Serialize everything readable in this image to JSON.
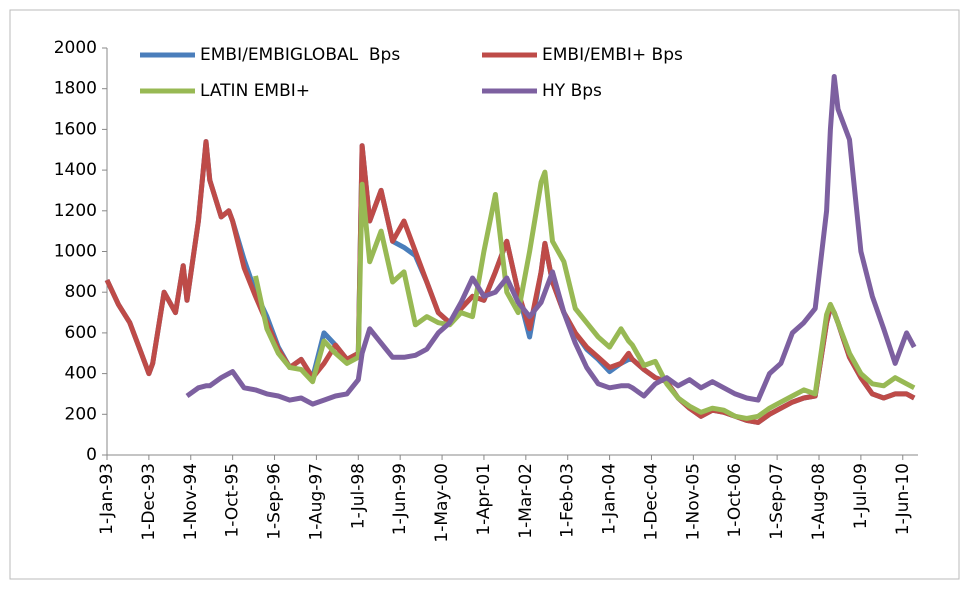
{
  "chart_data": {
    "type": "line",
    "x": [
      "1-Jan-93",
      "1-Apr-93",
      "1-Jul-93",
      "1-Oct-93",
      "1-Dec-93",
      "1-Jan-94",
      "1-Apr-94",
      "1-Jul-94",
      "1-Sep-94",
      "1-Oct-94",
      "1-Jan-95",
      "1-Mar-95",
      "1-Apr-95",
      "1-Jul-95",
      "1-Sep-95",
      "1-Oct-95",
      "1-Jan-96",
      "1-Apr-96",
      "1-Jul-96",
      "1-Oct-96",
      "1-Jan-97",
      "1-Apr-97",
      "1-Jul-97",
      "1-Oct-97",
      "1-Jan-98",
      "1-Apr-98",
      "1-Jul-98",
      "1-Aug-98",
      "1-Oct-98",
      "1-Jan-99",
      "1-Apr-99",
      "1-Jul-99",
      "1-Oct-99",
      "1-Jan-00",
      "1-Apr-00",
      "1-Jul-00",
      "1-Oct-00",
      "1-Jan-01",
      "1-Apr-01",
      "1-Jul-01",
      "1-Oct-01",
      "1-Jan-02",
      "1-Apr-02",
      "1-Jul-02",
      "1-Aug-02",
      "1-Oct-02",
      "1-Jan-03",
      "1-Apr-03",
      "1-Jul-03",
      "1-Oct-03",
      "1-Jan-04",
      "1-Apr-04",
      "1-Jun-04",
      "1-Jul-04",
      "1-Oct-04",
      "1-Jan-05",
      "1-Apr-05",
      "1-Jul-05",
      "1-Oct-05",
      "1-Jan-06",
      "1-Apr-06",
      "1-Jul-06",
      "1-Oct-06",
      "1-Jan-07",
      "1-Apr-07",
      "1-Jul-07",
      "1-Oct-07",
      "1-Jan-08",
      "1-Apr-08",
      "1-Jul-08",
      "1-Oct-08",
      "1-Nov-08",
      "1-Dec-08",
      "1-Jan-09",
      "1-Apr-09",
      "1-Jul-09",
      "1-Oct-09",
      "1-Jan-10",
      "1-Apr-10",
      "1-Jul-10",
      "1-Sep-10"
    ],
    "series": [
      {
        "name": "EMBI/EMBIGLOBAL  Bps",
        "color": "#4a7ebb",
        "values": [
          860,
          740,
          650,
          500,
          400,
          450,
          800,
          700,
          930,
          760,
          1150,
          1540,
          1350,
          1170,
          1200,
          1150,
          960,
          800,
          680,
          530,
          430,
          470,
          380,
          600,
          540,
          470,
          500,
          1520,
          1150,
          1300,
          1050,
          1020,
          980,
          850,
          700,
          650,
          720,
          780,
          760,
          900,
          1050,
          800,
          580,
          900,
          1040,
          850,
          700,
          600,
          520,
          470,
          410,
          450,
          470,
          470,
          420,
          380,
          360,
          280,
          230,
          190,
          220,
          210,
          190,
          170,
          160,
          200,
          230,
          260,
          280,
          290,
          650,
          720,
          700,
          650,
          480,
          380,
          300,
          280,
          300,
          300,
          280
        ]
      },
      {
        "name": "EMBI/EMBI+ Bps",
        "color": "#be4b48",
        "values": [
          860,
          740,
          650,
          500,
          400,
          450,
          800,
          700,
          930,
          760,
          1150,
          1540,
          1350,
          1170,
          1200,
          1150,
          920,
          780,
          650,
          520,
          430,
          470,
          380,
          450,
          540,
          470,
          500,
          1520,
          1150,
          1300,
          1050,
          1150,
          1000,
          850,
          700,
          650,
          720,
          780,
          760,
          900,
          1050,
          800,
          620,
          900,
          1040,
          850,
          700,
          600,
          530,
          480,
          430,
          450,
          500,
          470,
          420,
          380,
          360,
          280,
          230,
          190,
          220,
          210,
          190,
          170,
          160,
          200,
          230,
          260,
          280,
          290,
          650,
          730,
          700,
          650,
          480,
          380,
          300,
          280,
          300,
          300,
          280
        ]
      },
      {
        "name": "LATIN EMBI+",
        "color": "#98b954",
        "values": [
          null,
          null,
          null,
          null,
          null,
          null,
          null,
          null,
          null,
          null,
          null,
          null,
          null,
          null,
          null,
          null,
          null,
          880,
          620,
          500,
          430,
          420,
          360,
          560,
          500,
          450,
          480,
          1330,
          950,
          1100,
          850,
          900,
          640,
          680,
          650,
          640,
          700,
          680,
          1000,
          1280,
          800,
          700,
          1000,
          1340,
          1390,
          1050,
          950,
          720,
          650,
          580,
          530,
          620,
          560,
          540,
          440,
          460,
          350,
          280,
          240,
          210,
          230,
          220,
          190,
          180,
          190,
          230,
          260,
          290,
          320,
          300,
          690,
          740,
          700,
          650,
          500,
          400,
          350,
          340,
          380,
          350,
          330
        ]
      },
      {
        "name": "HY Bps",
        "color": "#7d60a0",
        "values": [
          null,
          null,
          null,
          null,
          null,
          null,
          null,
          null,
          null,
          290,
          330,
          340,
          340,
          380,
          400,
          410,
          330,
          320,
          300,
          290,
          270,
          280,
          250,
          270,
          290,
          300,
          370,
          500,
          620,
          550,
          480,
          480,
          490,
          520,
          600,
          650,
          750,
          870,
          780,
          800,
          870,
          750,
          680,
          750,
          800,
          900,
          700,
          550,
          430,
          350,
          330,
          340,
          340,
          330,
          290,
          350,
          380,
          340,
          370,
          330,
          360,
          330,
          300,
          280,
          270,
          400,
          450,
          600,
          650,
          720,
          1200,
          1600,
          1860,
          1700,
          1550,
          1000,
          780,
          620,
          450,
          600,
          530
        ]
      }
    ],
    "xlim": [
      "1-Jan-93",
      "1-Oct-10"
    ],
    "xticks": [
      "1-Jan-93",
      "1-Dec-93",
      "1-Nov-94",
      "1-Oct-95",
      "1-Sep-96",
      "1-Aug-97",
      "1-Jul-98",
      "1-Jun-99",
      "1-May-00",
      "1-Apr-01",
      "1-Mar-02",
      "1-Feb-03",
      "1-Jan-04",
      "1-Dec-04",
      "1-Nov-05",
      "1-Oct-06",
      "1-Sep-07",
      "1-Aug-08",
      "1-Jul-09",
      "1-Jun-10"
    ],
    "ylim": [
      0,
      2000
    ],
    "yticks": [
      0,
      200,
      400,
      600,
      800,
      1000,
      1200,
      1400,
      1600,
      1800,
      2000
    ],
    "grid": false
  }
}
